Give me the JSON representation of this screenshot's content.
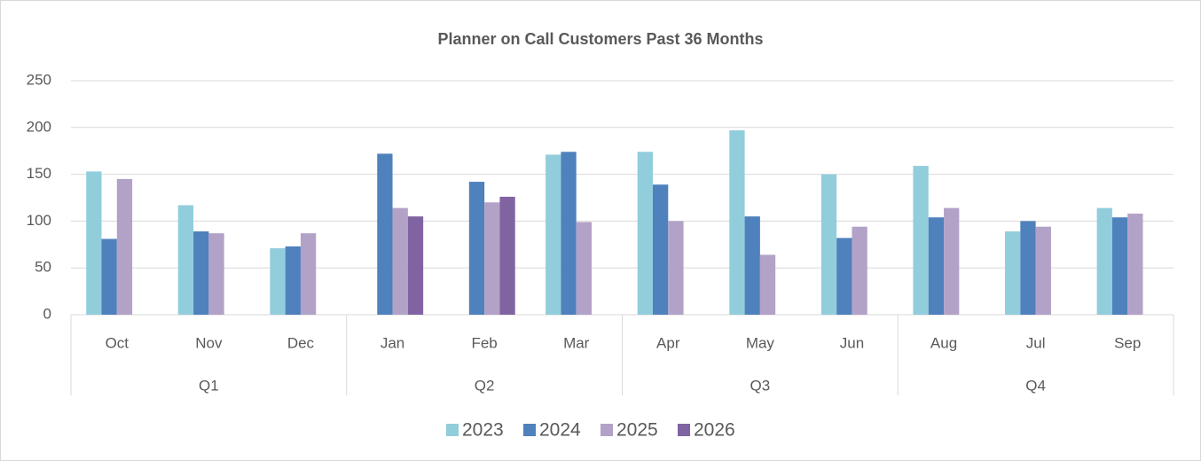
{
  "chart_data": {
    "type": "bar",
    "title": "Planner on Call Customers Past 36 Months",
    "categories": [
      "Oct",
      "Nov",
      "Dec",
      "Jan",
      "Feb",
      "Mar",
      "Apr",
      "May",
      "Jun",
      "Aug",
      "Jul",
      "Sep"
    ],
    "quarters": [
      "Q1",
      "Q2",
      "Q3",
      "Q4"
    ],
    "series": [
      {
        "name": "2023",
        "color": "#92cddc",
        "values": [
          153,
          117,
          71,
          null,
          null,
          171,
          174,
          197,
          150,
          159,
          89,
          114
        ]
      },
      {
        "name": "2024",
        "color": "#4f81bd",
        "values": [
          81,
          89,
          73,
          172,
          142,
          174,
          139,
          105,
          82,
          104,
          100,
          104
        ]
      },
      {
        "name": "2025",
        "color": "#b3a2c7",
        "values": [
          145,
          87,
          87,
          114,
          120,
          99,
          100,
          64,
          94,
          114,
          94,
          108
        ]
      },
      {
        "name": "2026",
        "color": "#8064a2",
        "values": [
          null,
          null,
          null,
          105,
          126,
          null,
          null,
          null,
          null,
          null,
          null,
          null
        ]
      }
    ],
    "ylim": [
      0,
      250
    ],
    "yticks": [
      0,
      50,
      100,
      150,
      200,
      250
    ],
    "grid": true,
    "legend": "bottom"
  }
}
